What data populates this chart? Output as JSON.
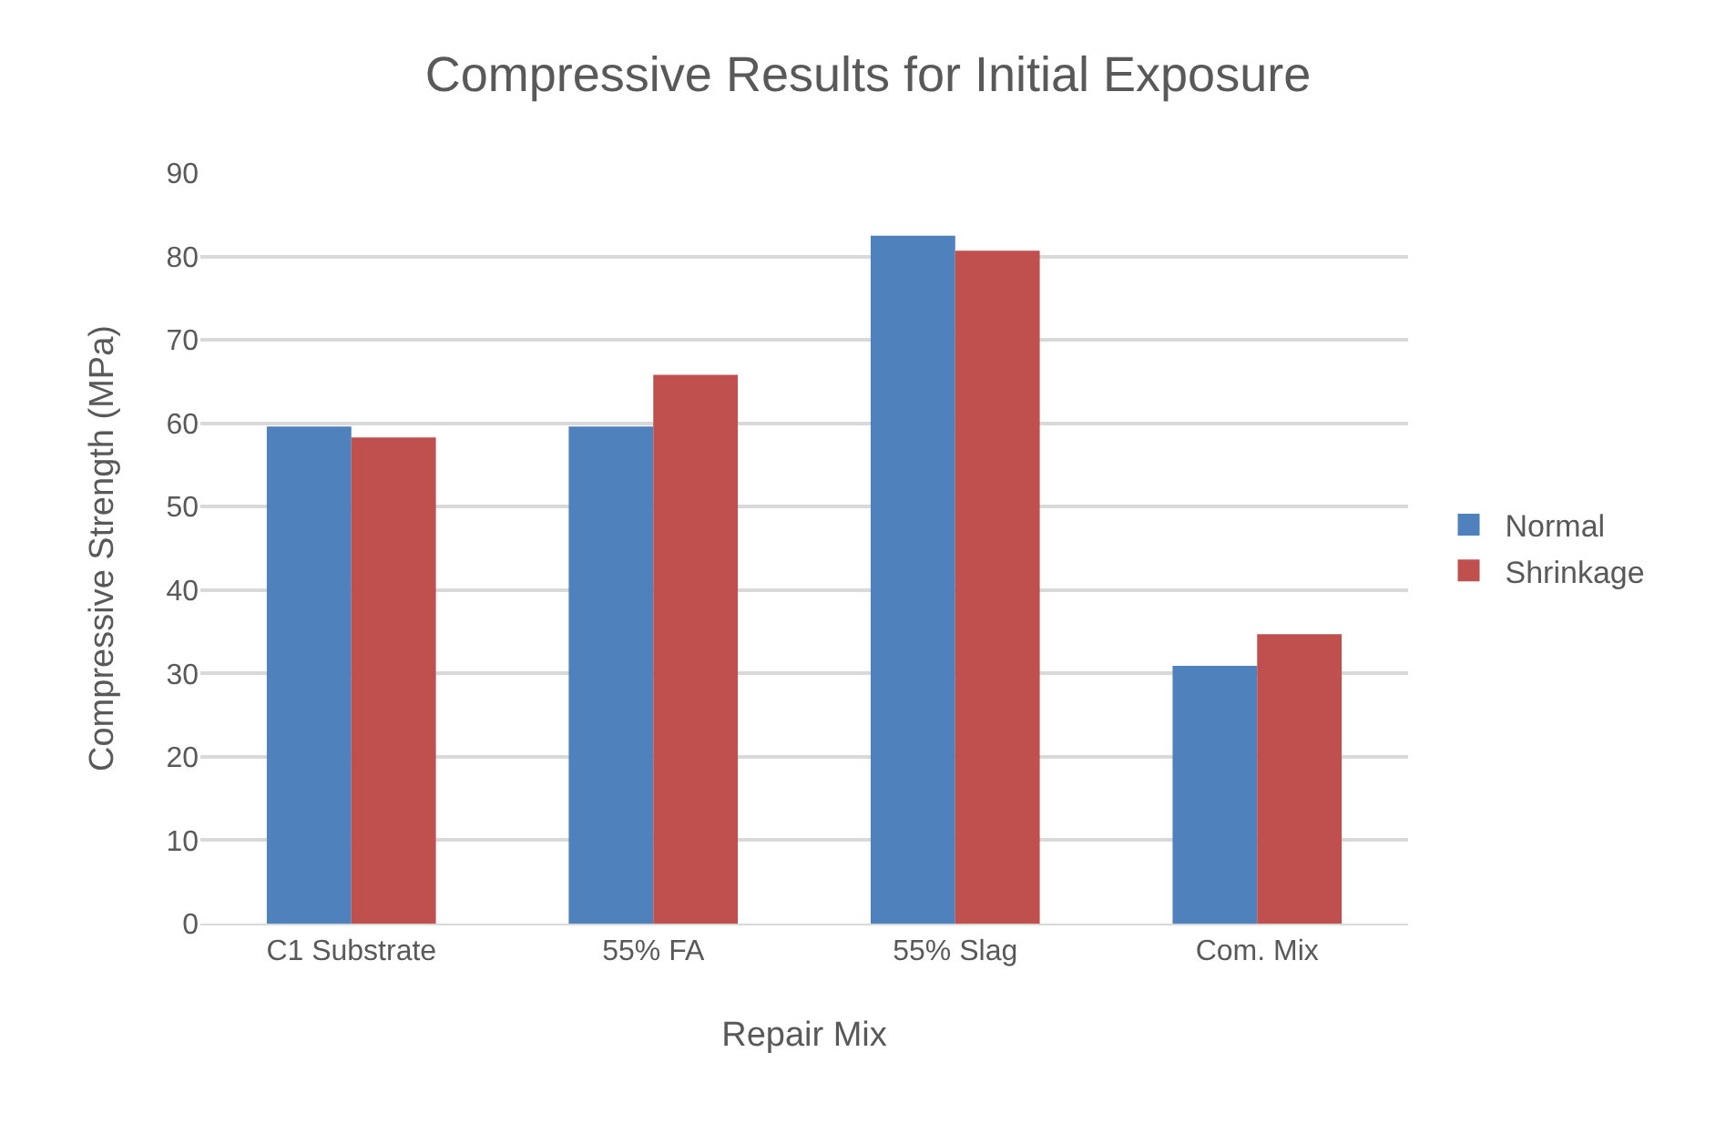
{
  "chart_data": {
    "type": "bar",
    "title": "Compressive Results for Initial Exposure",
    "xlabel": "Repair Mix",
    "ylabel": "Compressive Strength (MPa)",
    "categories": [
      "C1 Substrate",
      "55% FA",
      "55% Slag",
      "Com. Mix"
    ],
    "series": [
      {
        "name": "Normal",
        "color": "#4f81bd",
        "values": [
          59.6,
          59.6,
          82.5,
          30.9
        ]
      },
      {
        "name": "Shrinkage",
        "color": "#c0504d",
        "values": [
          58.3,
          65.8,
          80.7,
          34.7
        ]
      }
    ],
    "ylim": [
      0,
      90
    ],
    "yticks": [
      0,
      10,
      20,
      30,
      40,
      50,
      60,
      70,
      80,
      90
    ],
    "grid": "y",
    "legend": "right"
  }
}
